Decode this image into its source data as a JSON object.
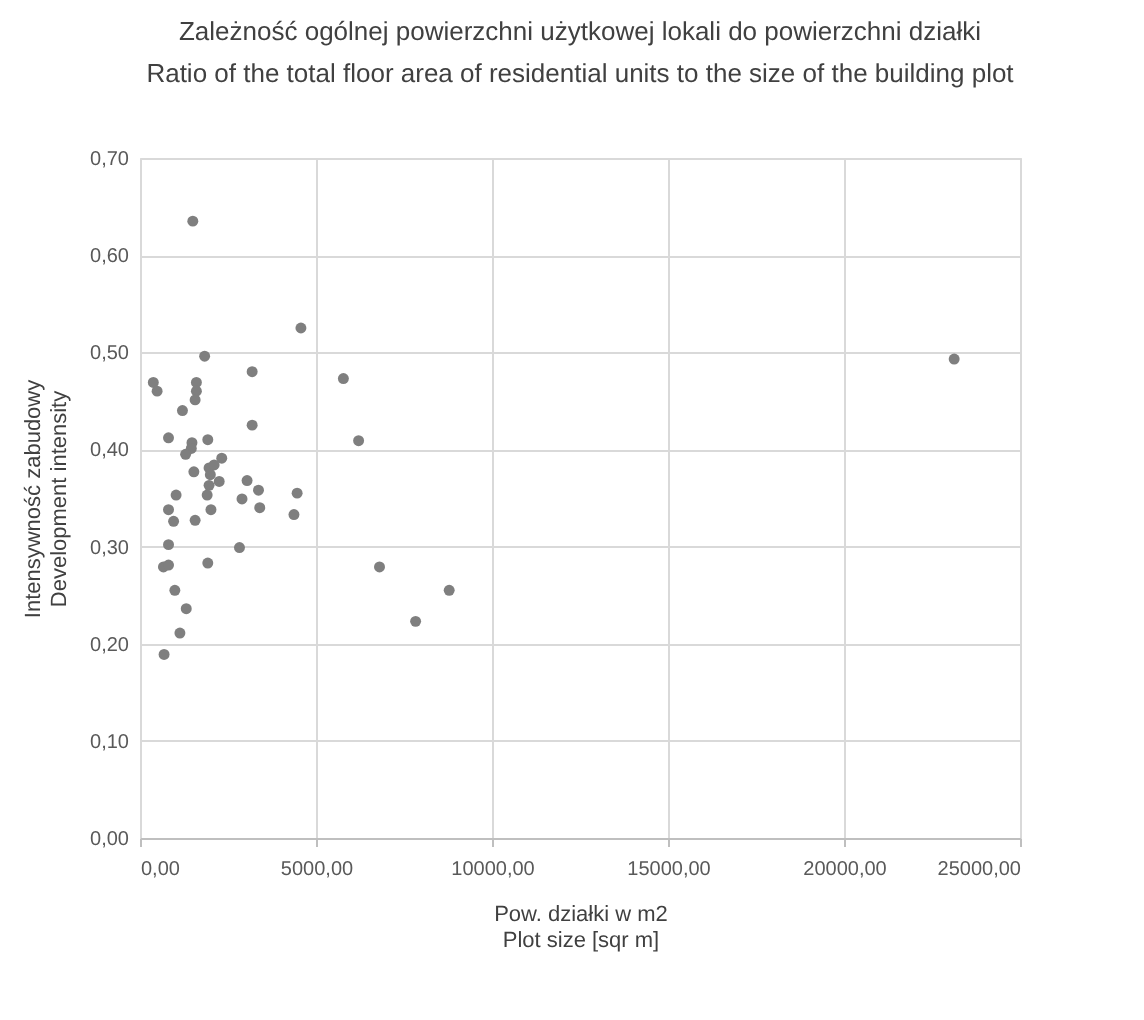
{
  "chart_data": {
    "type": "scatter",
    "title": "Zależność ogólnej powierzchni użytkowej lokali do powierzchni działki",
    "subtitle": "Ratio of the total floor area of residential units to the size of the building plot",
    "xlabel": [
      "Pow. działki w m2",
      "Plot size [sqr m]"
    ],
    "ylabel": [
      "Intensywność zabudowy",
      "Development intensity"
    ],
    "x": [
      4572,
      1836,
      3186,
      5778,
      378,
      486,
      1602,
      1602,
      1566,
      1206,
      3186,
      6210,
      810,
      1476,
      1926,
      1458,
      1296,
      2322,
      1530,
      1962,
      2106,
      1998,
      2250,
      3042,
      1962,
      1908,
      3366,
      4464,
      1026,
      2898,
      810,
      2016,
      3402,
      954,
      1566,
      4374,
      810,
      2826,
      666,
      810,
      1926,
      6804,
      990,
      8784,
      1314,
      7830,
      1134,
      684,
      1500,
      23130
    ],
    "series": [
      {
        "color": "#7f7f7f",
        "values": [
          0.525,
          0.496,
          0.48,
          0.473,
          0.469,
          0.46,
          0.469,
          0.46,
          0.451,
          0.44,
          0.425,
          0.409,
          0.412,
          0.407,
          0.41,
          0.401,
          0.395,
          0.391,
          0.377,
          0.381,
          0.384,
          0.374,
          0.367,
          0.368,
          0.363,
          0.353,
          0.358,
          0.355,
          0.353,
          0.349,
          0.338,
          0.338,
          0.34,
          0.326,
          0.327,
          0.333,
          0.302,
          0.299,
          0.279,
          0.281,
          0.283,
          0.279,
          0.255,
          0.255,
          0.236,
          0.223,
          0.211,
          0.189,
          0.635,
          0.493
        ]
      }
    ],
    "xlim": [
      0,
      25000
    ],
    "ylim": [
      0,
      0.7
    ],
    "xticks": [
      {
        "value": 0,
        "label": "0,00"
      },
      {
        "value": 5000,
        "label": "5000,00"
      },
      {
        "value": 10000,
        "label": "10000,00"
      },
      {
        "value": 15000,
        "label": "15000,00"
      },
      {
        "value": 20000,
        "label": "20000,00"
      },
      {
        "value": 25000,
        "label": "25000,00"
      }
    ],
    "yticks": [
      {
        "value": 0,
        "label": "0,00"
      },
      {
        "value": 0.1,
        "label": "0,10"
      },
      {
        "value": 0.2,
        "label": "0,20"
      },
      {
        "value": 0.3,
        "label": "0,30"
      },
      {
        "value": 0.4,
        "label": "0,40"
      },
      {
        "value": 0.5,
        "label": "0,50"
      },
      {
        "value": 0.6,
        "label": "0,60"
      },
      {
        "value": 0.7,
        "label": "0,70"
      }
    ],
    "grid": true,
    "marker": "circle"
  }
}
